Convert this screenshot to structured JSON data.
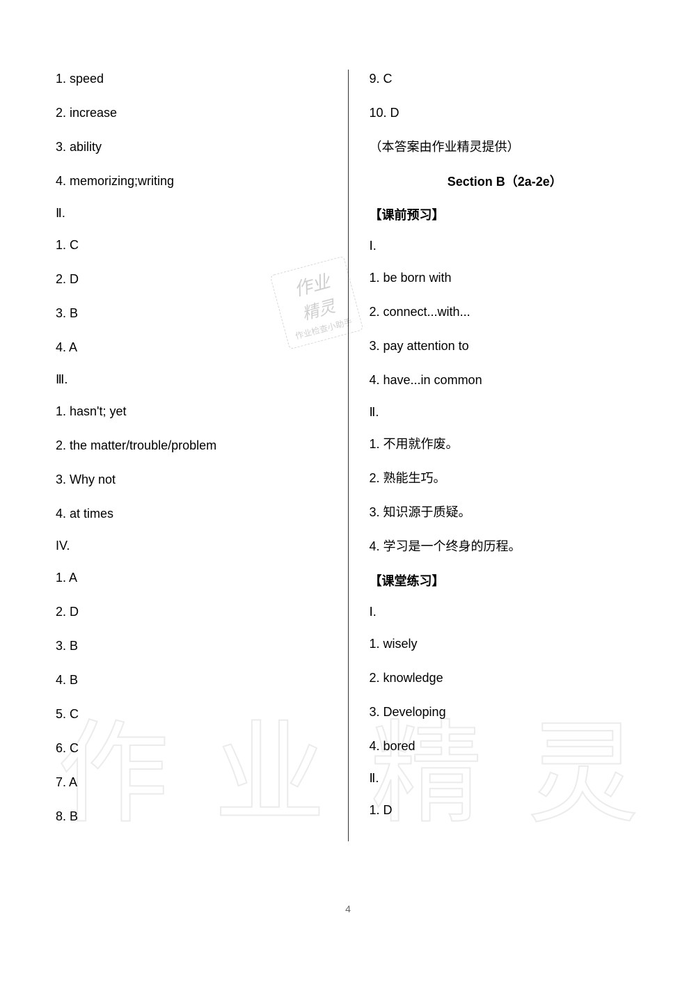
{
  "left_column": {
    "items_block1": [
      "1. speed",
      "2. increase",
      "3. ability",
      "4. memorizing;writing"
    ],
    "roman2": "Ⅱ.",
    "items_block2": [
      "1. C",
      "2. D",
      "3. B",
      "4. A"
    ],
    "roman3": "Ⅲ.",
    "items_block3": [
      "1. hasn't; yet",
      "2. the matter/trouble/problem",
      "3. Why not",
      "4. at times"
    ],
    "roman4": "IV.",
    "items_block4": [
      "1. A",
      "2. D",
      "3. B",
      "4. B",
      "5. C",
      "6. C",
      "7. A",
      "8. B"
    ]
  },
  "right_column": {
    "items_top": [
      "9. C",
      "10. D",
      "（本答案由作业精灵提供）"
    ],
    "section_title": "Section B（2a-2e）",
    "heading1": "【课前预习】",
    "roman1": "Ⅰ.",
    "preview1": [
      "1. be born with",
      "2. connect...with...",
      "3. pay attention to",
      "4. have...in common"
    ],
    "roman2": "Ⅱ.",
    "preview2": [
      "1. 不用就作废。",
      "2. 熟能生巧。",
      "3. 知识源于质疑。",
      "4. 学习是一个终身的历程。"
    ],
    "heading2": "【课堂练习】",
    "roman3": "Ⅰ.",
    "practice1": [
      "1. wisely",
      "2. knowledge",
      "3. Developing",
      "4. bored"
    ],
    "roman4": "Ⅱ.",
    "practice2": [
      "1. D"
    ]
  },
  "watermark_small": {
    "line1": "作业",
    "line2": "精灵",
    "line3": "作业检查小助手"
  },
  "watermark_large": {
    "chars": [
      "作",
      "业",
      "精",
      "灵"
    ]
  },
  "page_number": "4",
  "colors": {
    "text": "#000000",
    "background": "#ffffff",
    "divider": "#333333",
    "watermark": "#888888"
  },
  "fonts": {
    "body_size": 18,
    "watermark_large_size": 160
  }
}
